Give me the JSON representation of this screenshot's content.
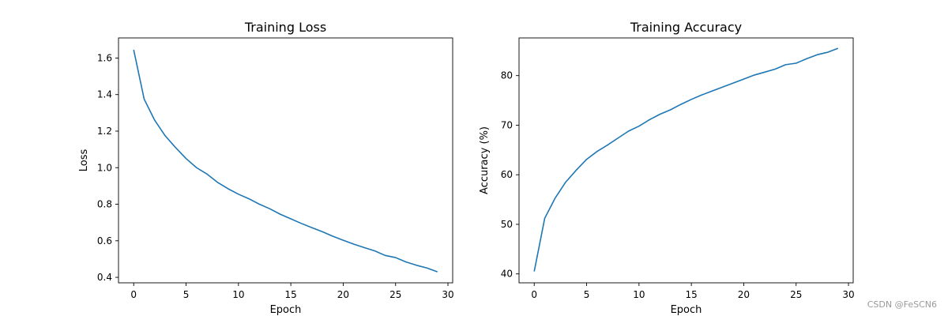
{
  "chart_data": [
    {
      "type": "line",
      "title": "Training Loss",
      "xlabel": "Epoch",
      "ylabel": "Loss",
      "xlim": [
        -1.45,
        30.45
      ],
      "ylim": [
        0.37,
        1.71
      ],
      "xticks": [
        0,
        5,
        10,
        15,
        20,
        25,
        30
      ],
      "xtick_labels": [
        "0",
        "5",
        "10",
        "15",
        "20",
        "25",
        "30"
      ],
      "yticks": [
        0.4,
        0.6,
        0.8,
        1.0,
        1.2,
        1.4,
        1.6
      ],
      "ytick_labels": [
        "0.4",
        "0.6",
        "0.8",
        "1.0",
        "1.2",
        "1.4",
        "1.6"
      ],
      "grid": false,
      "series": [
        {
          "color": "#1f77b4",
          "x": [
            0,
            1,
            2,
            3,
            4,
            5,
            6,
            7,
            8,
            9,
            10,
            11,
            12,
            13,
            14,
            15,
            16,
            17,
            18,
            19,
            20,
            21,
            22,
            23,
            24,
            25,
            26,
            27,
            28,
            29
          ],
          "values": [
            1.645,
            1.375,
            1.26,
            1.175,
            1.11,
            1.05,
            1.0,
            0.965,
            0.92,
            0.885,
            0.855,
            0.83,
            0.8,
            0.775,
            0.745,
            0.72,
            0.695,
            0.672,
            0.65,
            0.625,
            0.603,
            0.582,
            0.563,
            0.545,
            0.52,
            0.508,
            0.484,
            0.466,
            0.451,
            0.43
          ]
        }
      ]
    },
    {
      "type": "line",
      "title": "Training Accuracy",
      "xlabel": "Epoch",
      "ylabel": "Accuracy (%)",
      "xlim": [
        -1.45,
        30.45
      ],
      "ylim": [
        38.2,
        87.6
      ],
      "xticks": [
        0,
        5,
        10,
        15,
        20,
        25,
        30
      ],
      "xtick_labels": [
        "0",
        "5",
        "10",
        "15",
        "20",
        "25",
        "30"
      ],
      "yticks": [
        40,
        50,
        60,
        70,
        80
      ],
      "ytick_labels": [
        "40",
        "50",
        "60",
        "70",
        "80"
      ],
      "grid": false,
      "series": [
        {
          "color": "#1f77b4",
          "x": [
            0,
            1,
            2,
            3,
            4,
            5,
            6,
            7,
            8,
            9,
            10,
            11,
            12,
            13,
            14,
            15,
            16,
            17,
            18,
            19,
            20,
            21,
            22,
            23,
            24,
            25,
            26,
            27,
            28,
            29
          ],
          "values": [
            40.5,
            51.2,
            55.3,
            58.5,
            60.9,
            63.1,
            64.7,
            66.0,
            67.4,
            68.8,
            69.8,
            71.1,
            72.2,
            73.1,
            74.2,
            75.2,
            76.1,
            76.9,
            77.7,
            78.5,
            79.3,
            80.1,
            80.7,
            81.3,
            82.2,
            82.5,
            83.4,
            84.2,
            84.7,
            85.5
          ]
        }
      ]
    }
  ],
  "watermark": "CSDN @FeSCN6"
}
